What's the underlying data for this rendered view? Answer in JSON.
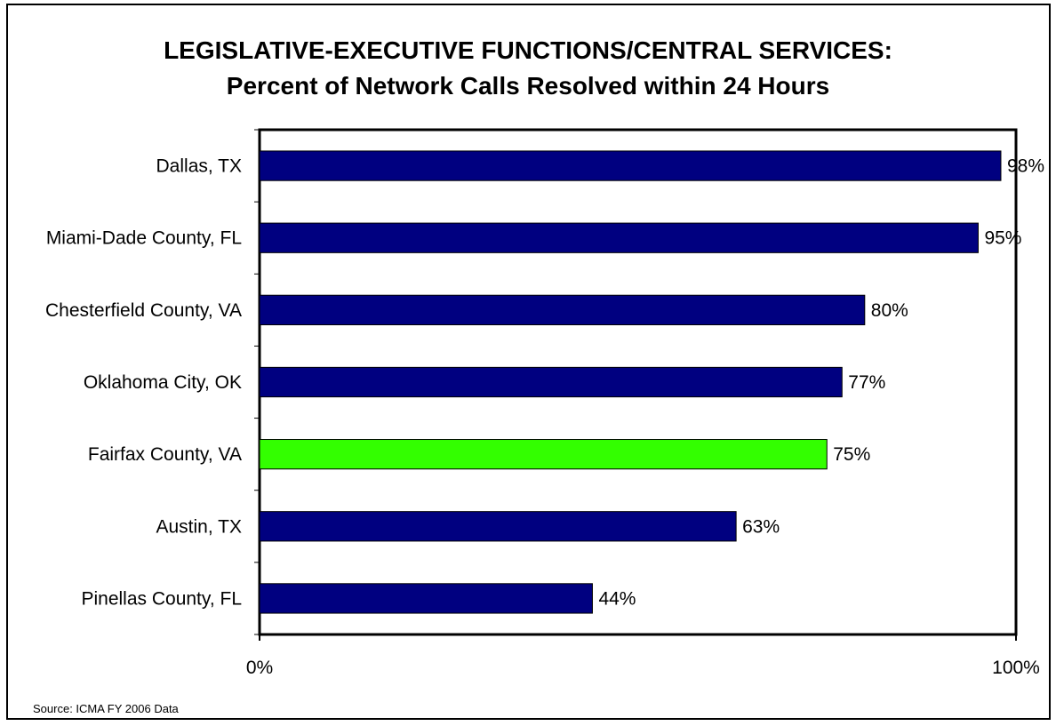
{
  "title": {
    "line1": "LEGISLATIVE-EXECUTIVE FUNCTIONS/CENTRAL SERVICES:",
    "line2": "Percent of Network Calls Resolved within 24 Hours"
  },
  "source": "Source: ICMA  FY 2006 Data",
  "colors": {
    "default_bar": "#000080",
    "highlight_bar": "#33ff00"
  },
  "chart_data": {
    "type": "bar",
    "orientation": "horizontal",
    "categories": [
      "Dallas, TX",
      "Miami-Dade County, FL",
      "Chesterfield County, VA",
      "Oklahoma City, OK",
      "Fairfax County, VA",
      "Austin, TX",
      "Pinellas County, FL"
    ],
    "values": [
      98,
      95,
      80,
      77,
      75,
      63,
      44
    ],
    "value_labels": [
      "98%",
      "95%",
      "80%",
      "77%",
      "75%",
      "63%",
      "44%"
    ],
    "highlight": "Fairfax County, VA",
    "xlim": [
      0,
      100
    ],
    "x_tick_labels": [
      "0%",
      "100%"
    ],
    "xlabel": "",
    "ylabel": "",
    "grid": false,
    "legend": "none"
  }
}
